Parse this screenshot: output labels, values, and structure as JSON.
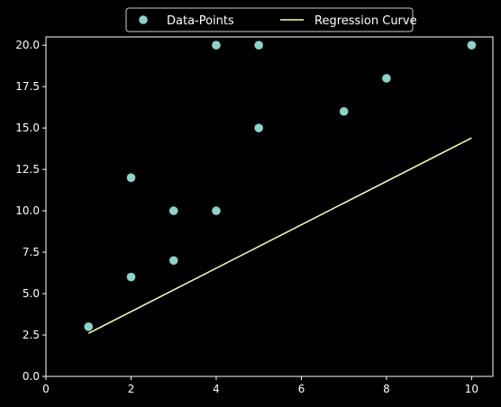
{
  "chart_data": {
    "type": "scatter",
    "title": "",
    "xlabel": "",
    "ylabel": "",
    "xlim": [
      0,
      10.5
    ],
    "ylim": [
      0,
      20.5
    ],
    "x_ticks": [
      "0",
      "2",
      "4",
      "6",
      "8",
      "10"
    ],
    "y_ticks": [
      "0.0",
      "2.5",
      "5.0",
      "7.5",
      "10.0",
      "12.5",
      "15.0",
      "17.5",
      "20.0"
    ],
    "grid": false,
    "legend_position": "top-center",
    "background": "#000000",
    "series": [
      {
        "name": "Data-Points",
        "kind": "scatter",
        "color": "#8dd3c7",
        "points": [
          {
            "x": 1,
            "y": 3
          },
          {
            "x": 2,
            "y": 6
          },
          {
            "x": 2,
            "y": 12
          },
          {
            "x": 3,
            "y": 7
          },
          {
            "x": 3,
            "y": 10
          },
          {
            "x": 4,
            "y": 10
          },
          {
            "x": 4,
            "y": 20
          },
          {
            "x": 5,
            "y": 15
          },
          {
            "x": 5,
            "y": 20
          },
          {
            "x": 7,
            "y": 16
          },
          {
            "x": 8,
            "y": 18
          },
          {
            "x": 10,
            "y": 20
          }
        ]
      },
      {
        "name": "Regression Curve",
        "kind": "line",
        "color": "#feffb3",
        "points": [
          {
            "x": 1,
            "y": 2.6
          },
          {
            "x": 10,
            "y": 14.4
          }
        ]
      }
    ]
  }
}
